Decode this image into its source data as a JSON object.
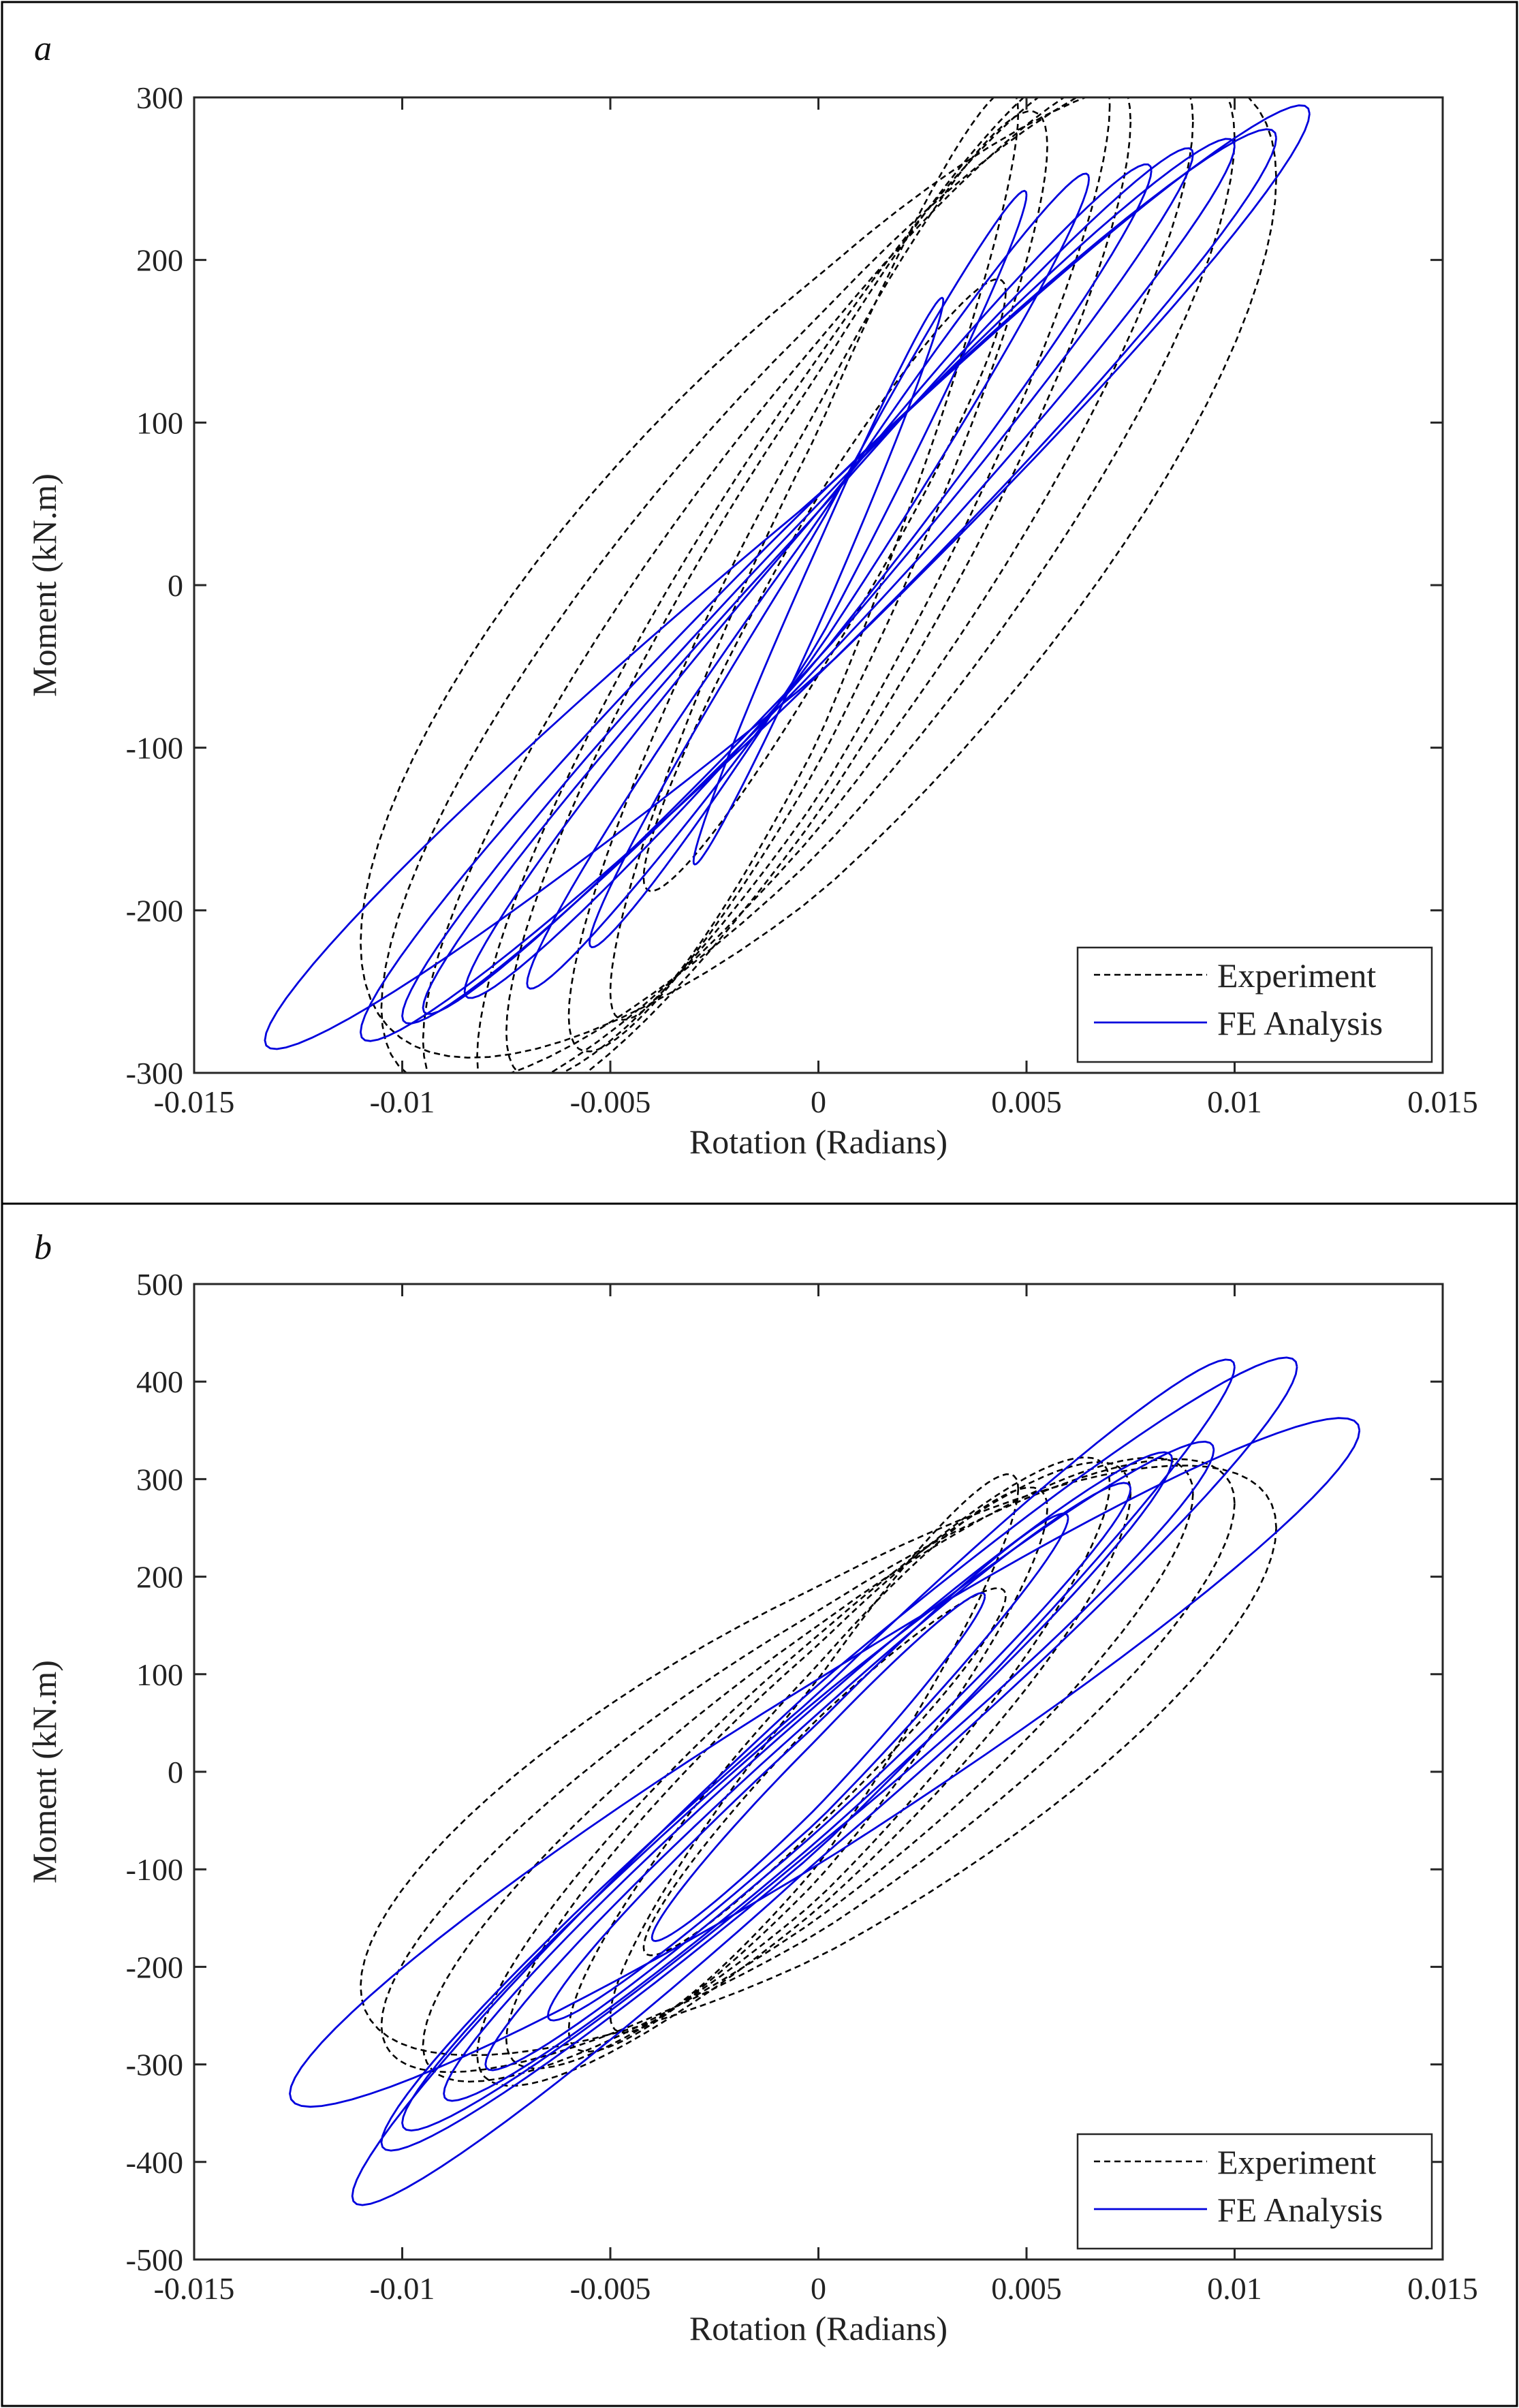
{
  "chart_data": [
    {
      "panel_label": "a",
      "type": "line",
      "xlabel": "Rotation (Radians)",
      "ylabel": "Moment (kN.m)",
      "xlim": [
        -0.015,
        0.015
      ],
      "ylim": [
        -300,
        300
      ],
      "xticks": [
        -0.015,
        -0.01,
        -0.005,
        0,
        0.005,
        0.01,
        0.015
      ],
      "xtick_labels": [
        "-0.015",
        "-0.01",
        "-0.005",
        "0",
        "0.005",
        "0.01",
        "0.015"
      ],
      "yticks": [
        -300,
        -200,
        -100,
        0,
        100,
        200,
        300
      ],
      "ytick_labels": [
        "-300",
        "-200",
        "-100",
        "0",
        "100",
        "200",
        "300"
      ],
      "grid": false,
      "legend_position": "bottom-right",
      "legend": [
        "Experiment",
        "FE Analysis"
      ],
      "series": [
        {
          "name": "Experiment",
          "style": "dashed",
          "color": "#000000",
          "loops": [
            {
              "amp_pos": 0.0045,
              "amp_neg": -0.0042,
              "m_pos": 180,
              "m_neg": -180,
              "width": 55
            },
            {
              "amp_pos": 0.0048,
              "amp_neg": -0.005,
              "m_pos": 290,
              "m_neg": -250,
              "width": 95
            },
            {
              "amp_pos": 0.0055,
              "amp_neg": -0.006,
              "m_pos": 270,
              "m_neg": -265,
              "width": 110
            },
            {
              "amp_pos": 0.007,
              "amp_neg": -0.0075,
              "m_pos": 295,
              "m_neg": -275,
              "width": 130
            },
            {
              "amp_pos": 0.0075,
              "amp_neg": -0.0082,
              "m_pos": 285,
              "m_neg": -290,
              "width": 140
            },
            {
              "amp_pos": 0.009,
              "amp_neg": -0.0095,
              "m_pos": 285,
              "m_neg": -280,
              "width": 150
            },
            {
              "amp_pos": 0.01,
              "amp_neg": -0.0105,
              "m_pos": 275,
              "m_neg": -260,
              "width": 165
            },
            {
              "amp_pos": 0.011,
              "amp_neg": -0.011,
              "m_pos": 250,
              "m_neg": -220,
              "width": 190
            }
          ]
        },
        {
          "name": "FE Analysis",
          "style": "solid",
          "color": "#0000dd",
          "loops": [
            {
              "amp_pos": 0.003,
              "amp_neg": -0.003,
              "m_pos": 175,
              "m_neg": -170,
              "width": 25
            },
            {
              "amp_pos": 0.005,
              "amp_neg": -0.0055,
              "m_pos": 240,
              "m_neg": -220,
              "width": 35
            },
            {
              "amp_pos": 0.0065,
              "amp_neg": -0.007,
              "m_pos": 250,
              "m_neg": -245,
              "width": 40
            },
            {
              "amp_pos": 0.008,
              "amp_neg": -0.0085,
              "m_pos": 255,
              "m_neg": -250,
              "width": 45
            },
            {
              "amp_pos": 0.009,
              "amp_neg": -0.0095,
              "m_pos": 265,
              "m_neg": -260,
              "width": 45
            },
            {
              "amp_pos": 0.01,
              "amp_neg": -0.01,
              "m_pos": 270,
              "m_neg": -265,
              "width": 50
            },
            {
              "amp_pos": 0.011,
              "amp_neg": -0.011,
              "m_pos": 275,
              "m_neg": -275,
              "width": 55
            },
            {
              "amp_pos": 0.0118,
              "amp_neg": -0.0133,
              "m_pos": 290,
              "m_neg": -280,
              "width": 55
            }
          ]
        }
      ]
    },
    {
      "panel_label": "b",
      "type": "line",
      "xlabel": "Rotation (Radians)",
      "ylabel": "Moment (kN.m)",
      "xlim": [
        -0.015,
        0.015
      ],
      "ylim": [
        -500,
        500
      ],
      "xticks": [
        -0.015,
        -0.01,
        -0.005,
        0,
        0.005,
        0.01,
        0.015
      ],
      "xtick_labels": [
        "-0.015",
        "-0.01",
        "-0.005",
        "0",
        "0.005",
        "0.01",
        "0.015"
      ],
      "yticks": [
        -500,
        -400,
        -300,
        -200,
        -100,
        0,
        100,
        200,
        300,
        400,
        500
      ],
      "ytick_labels": [
        "-500",
        "-400",
        "-300",
        "-200",
        "-100",
        "0",
        "100",
        "200",
        "300",
        "400",
        "500"
      ],
      "grid": false,
      "legend_position": "bottom-right",
      "legend": [
        "Experiment",
        "FE Analysis"
      ],
      "series": [
        {
          "name": "Experiment",
          "style": "dashed",
          "color": "#000000",
          "loops": [
            {
              "amp_pos": 0.0045,
              "amp_neg": -0.0042,
              "m_pos": 180,
              "m_neg": -180,
              "width": 55
            },
            {
              "amp_pos": 0.0048,
              "amp_neg": -0.005,
              "m_pos": 290,
              "m_neg": -250,
              "width": 95
            },
            {
              "amp_pos": 0.0055,
              "amp_neg": -0.006,
              "m_pos": 270,
              "m_neg": -265,
              "width": 110
            },
            {
              "amp_pos": 0.007,
              "amp_neg": -0.0075,
              "m_pos": 295,
              "m_neg": -275,
              "width": 130
            },
            {
              "amp_pos": 0.0075,
              "amp_neg": -0.0082,
              "m_pos": 285,
              "m_neg": -290,
              "width": 140
            },
            {
              "amp_pos": 0.009,
              "amp_neg": -0.0095,
              "m_pos": 285,
              "m_neg": -280,
              "width": 150
            },
            {
              "amp_pos": 0.01,
              "amp_neg": -0.0105,
              "m_pos": 275,
              "m_neg": -260,
              "width": 165
            },
            {
              "amp_pos": 0.011,
              "amp_neg": -0.011,
              "m_pos": 250,
              "m_neg": -220,
              "width": 190
            }
          ]
        },
        {
          "name": "FE Analysis",
          "style": "solid",
          "color": "#0000dd",
          "loops": [
            {
              "amp_pos": 0.004,
              "amp_neg": -0.004,
              "m_pos": 180,
              "m_neg": -170,
              "width": 35
            },
            {
              "amp_pos": 0.006,
              "amp_neg": -0.0065,
              "m_pos": 260,
              "m_neg": -250,
              "width": 50
            },
            {
              "amp_pos": 0.0075,
              "amp_neg": -0.008,
              "m_pos": 290,
              "m_neg": -300,
              "width": 60
            },
            {
              "amp_pos": 0.0085,
              "amp_neg": -0.009,
              "m_pos": 320,
              "m_neg": -330,
              "width": 70
            },
            {
              "amp_pos": 0.0095,
              "amp_neg": -0.01,
              "m_pos": 330,
              "m_neg": -360,
              "width": 75
            },
            {
              "amp_pos": 0.01,
              "amp_neg": -0.0105,
              "m_pos": 415,
              "m_neg": -380,
              "width": 80
            },
            {
              "amp_pos": 0.0115,
              "amp_neg": -0.0112,
              "m_pos": 415,
              "m_neg": -435,
              "width": 90
            },
            {
              "amp_pos": 0.013,
              "amp_neg": -0.0127,
              "m_pos": 350,
              "m_neg": -330,
              "width": 95
            }
          ]
        }
      ]
    }
  ]
}
